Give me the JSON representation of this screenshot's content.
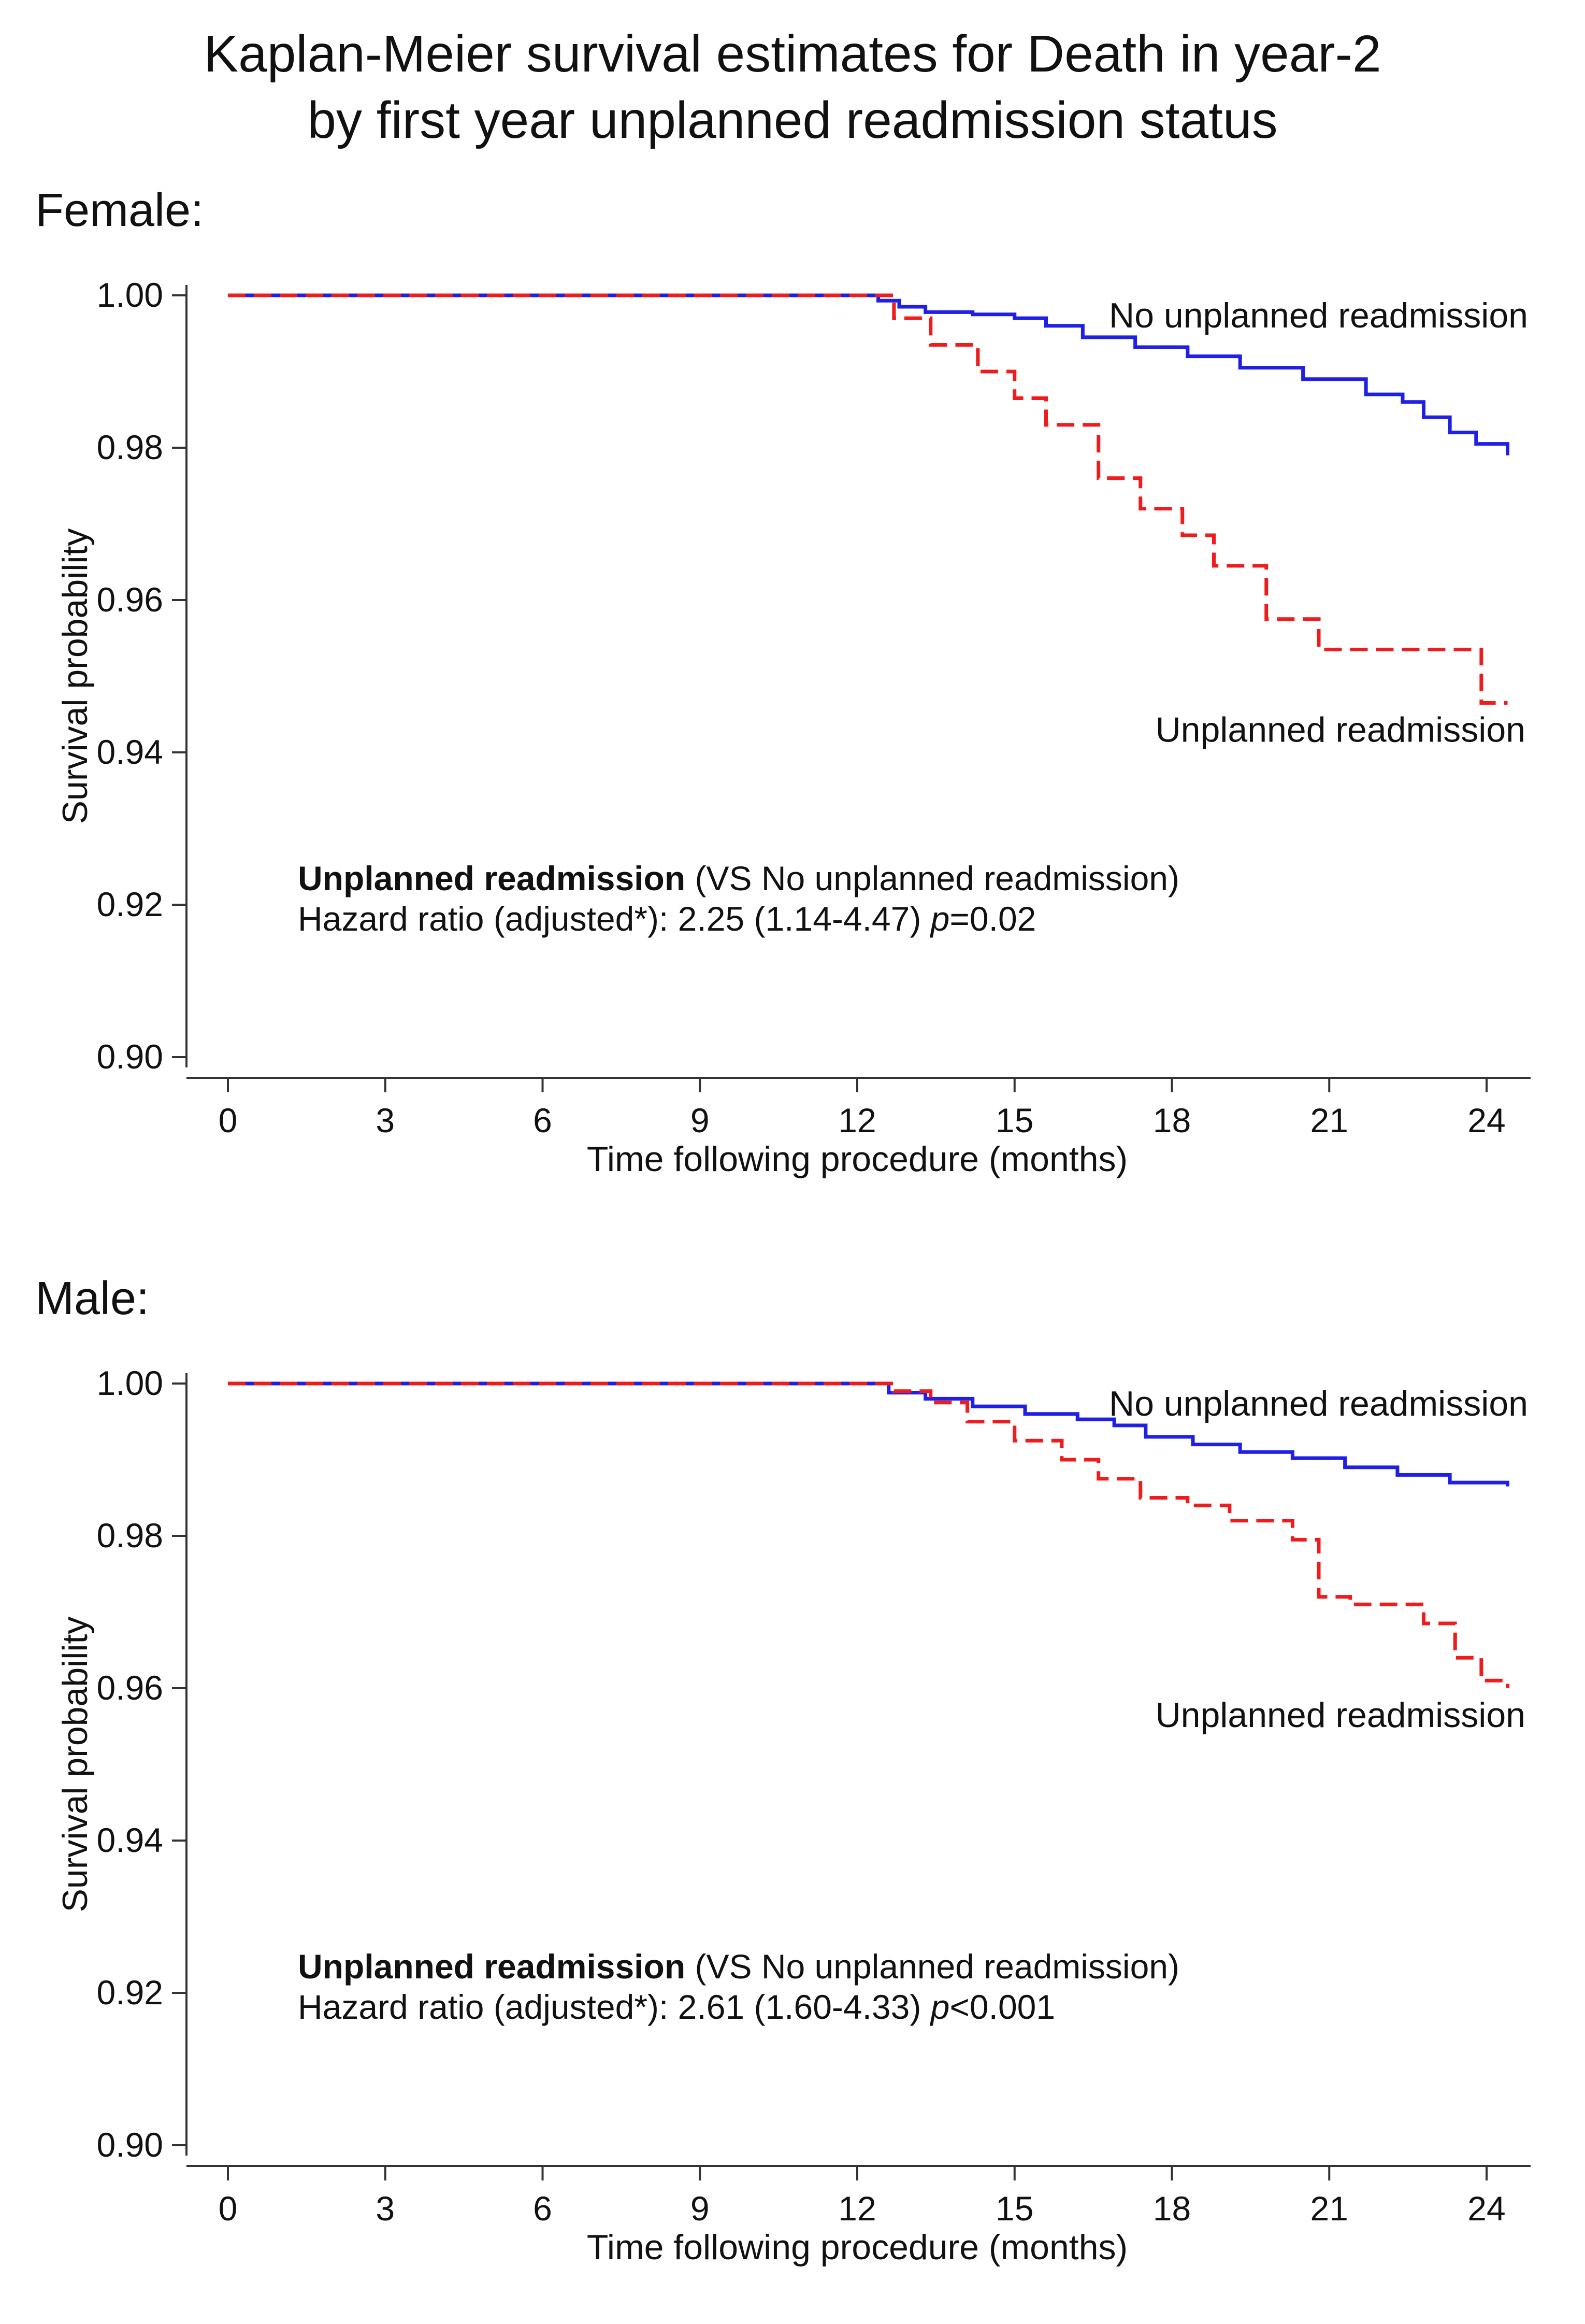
{
  "title": {
    "line1": "Kaplan-Meier survival estimates for Death in year-2",
    "line2": "by first year unplanned readmission status"
  },
  "colors": {
    "no_readmission": "#1f1fe6",
    "readmission": "#ee1c1c",
    "axis": "#333333"
  },
  "chart_data": [
    {
      "type": "line",
      "panel_label": "Female:",
      "xlabel": "Time following procedure (months)",
      "ylabel": "Survival probability",
      "xlim": [
        -0.4,
        25
      ],
      "ylim": [
        0.9,
        1.0
      ],
      "xticks": [
        0,
        3,
        6,
        9,
        12,
        15,
        18,
        21,
        24
      ],
      "yticks": [
        0.9,
        0.92,
        0.94,
        0.96,
        0.98,
        1.0
      ],
      "ytick_labels": [
        "0.90",
        "0.92",
        "0.94",
        "0.96",
        "0.98",
        "1.00"
      ],
      "series": [
        {
          "name": "No unplanned readmission",
          "style": "solid",
          "x": [
            0,
            12.1,
            12.4,
            12.8,
            13.3,
            14.2,
            15.0,
            15.6,
            16.3,
            17.3,
            18.3,
            19.3,
            20.5,
            21.7,
            22.4,
            22.8,
            23.3,
            23.8,
            24.4
          ],
          "y": [
            1.0,
            1.0,
            0.9993,
            0.9985,
            0.9978,
            0.9975,
            0.997,
            0.996,
            0.9945,
            0.9932,
            0.992,
            0.9905,
            0.989,
            0.987,
            0.986,
            0.984,
            0.982,
            0.9805,
            0.979
          ]
        },
        {
          "name": "Unplanned readmission",
          "style": "dashed",
          "x": [
            0,
            12.1,
            12.7,
            13.4,
            14.3,
            15.0,
            15.6,
            16.6,
            17.4,
            18.2,
            18.8,
            19.8,
            20.8,
            22.0,
            23.9,
            24.4
          ],
          "y": [
            1.0,
            1.0,
            0.997,
            0.9935,
            0.99,
            0.9865,
            0.983,
            0.976,
            0.972,
            0.9685,
            0.9645,
            0.9575,
            0.9535,
            0.9535,
            0.9465,
            0.9465
          ]
        }
      ],
      "annotation": {
        "bold": "Unplanned readmission",
        "rest": " (VS No unplanned readmission)",
        "hr_prefix": "Hazard ratio (adjusted*): 2.25 (1.14-4.47) ",
        "p_symbol": "p",
        "p_value": "=0.02"
      }
    },
    {
      "type": "line",
      "panel_label": "Male:",
      "xlabel": "Time following procedure (months)",
      "ylabel": "Survival probability",
      "xlim": [
        -0.4,
        25
      ],
      "ylim": [
        0.9,
        1.0
      ],
      "xticks": [
        0,
        3,
        6,
        9,
        12,
        15,
        18,
        21,
        24
      ],
      "yticks": [
        0.9,
        0.92,
        0.94,
        0.96,
        0.98,
        1.0
      ],
      "ytick_labels": [
        "0.90",
        "0.92",
        "0.94",
        "0.96",
        "0.98",
        "1.00"
      ],
      "series": [
        {
          "name": "No unplanned readmission",
          "style": "solid",
          "x": [
            0,
            12.1,
            12.6,
            13.3,
            14.2,
            15.2,
            16.2,
            16.9,
            17.5,
            18.4,
            19.3,
            20.3,
            21.3,
            22.3,
            23.3,
            24.4
          ],
          "y": [
            1.0,
            1.0,
            0.9988,
            0.998,
            0.997,
            0.996,
            0.9953,
            0.9945,
            0.993,
            0.992,
            0.991,
            0.9902,
            0.989,
            0.988,
            0.987,
            0.9865
          ]
        },
        {
          "name": "Unplanned readmission",
          "style": "dashed",
          "x": [
            0,
            12.1,
            12.7,
            13.4,
            14.1,
            15.0,
            15.9,
            16.6,
            17.4,
            18.3,
            19.1,
            20.3,
            20.8,
            21.4,
            22.8,
            23.4,
            23.9,
            24.4
          ],
          "y": [
            1.0,
            1.0,
            0.999,
            0.9975,
            0.995,
            0.9925,
            0.99,
            0.9875,
            0.985,
            0.984,
            0.982,
            0.9795,
            0.972,
            0.971,
            0.9685,
            0.964,
            0.961,
            0.96
          ]
        }
      ],
      "annotation": {
        "bold": "Unplanned readmission",
        "rest": " (VS No unplanned readmission)",
        "hr_prefix": "Hazard ratio (adjusted*): 2.61 (1.60-4.33) ",
        "p_symbol": "p",
        "p_value": "<0.001"
      }
    }
  ]
}
